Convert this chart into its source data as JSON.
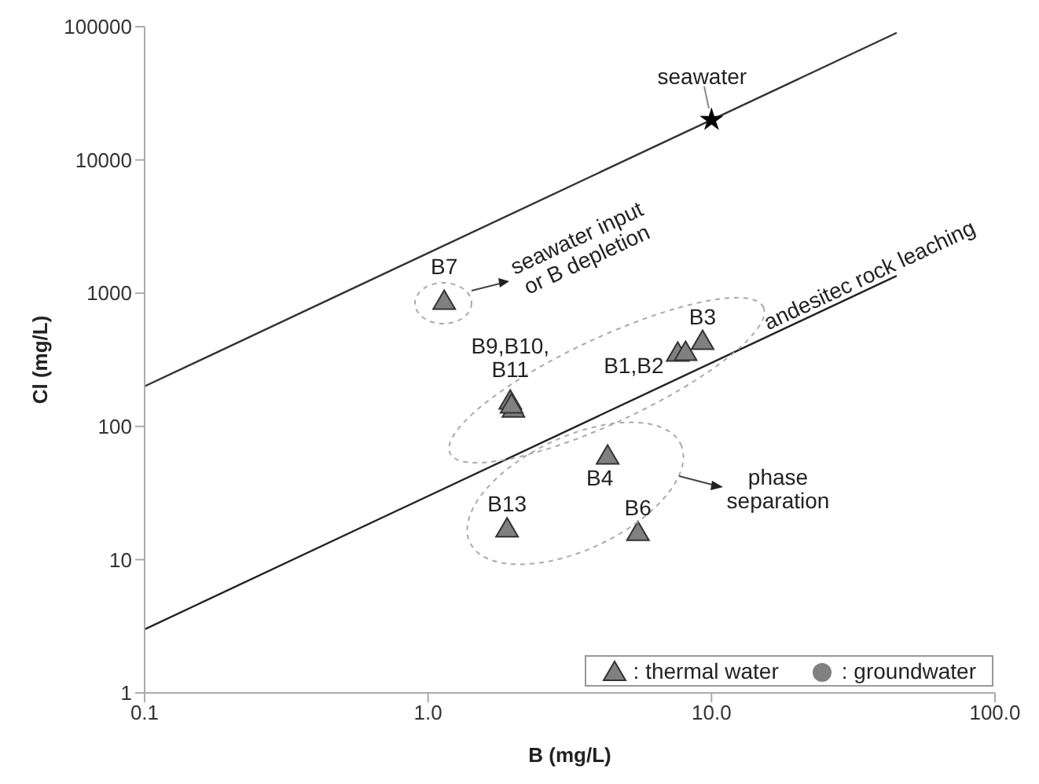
{
  "chart_data": {
    "type": "scatter",
    "xlabel": "B (mg/L)",
    "ylabel": "Cl (mg/L)",
    "log": "xy",
    "grid": false,
    "legend": "bottom right",
    "xlim": [
      0.1,
      100
    ],
    "xticks": [
      {
        "value": 0.1,
        "label": "0.1"
      },
      {
        "value": 1,
        "label": "1.0"
      },
      {
        "value": 10,
        "label": "10.0"
      },
      {
        "value": 100,
        "label": "100.0"
      }
    ],
    "ylim": [
      1,
      100000
    ],
    "yticks": [
      1,
      10,
      100,
      1000,
      10000,
      100000
    ],
    "series": [
      {
        "name": ": thermal water",
        "marker": "triangle",
        "color": "#808080",
        "x": [
          1.14,
          1.95,
          2.0,
          1.97,
          7.6,
          8.1,
          9.3,
          4.3,
          1.9,
          5.5
        ],
        "values": [
          870,
          155,
          135,
          145,
          355,
          360,
          435,
          60,
          17,
          16
        ]
      },
      {
        "name": ": groundwater",
        "marker": "circle",
        "color": "#808080"
      },
      {
        "marker": "star",
        "color": "#000000",
        "x": [
          10
        ],
        "values": [
          20000
        ]
      },
      {
        "type": "line",
        "color": "#333333",
        "line_style": "solid",
        "x": [
          0.1,
          45
        ],
        "values": [
          200,
          90000
        ]
      },
      {
        "type": "line",
        "color": "#222222",
        "line_style": "solid",
        "x": [
          0.1,
          45
        ],
        "values": [
          3,
          1350
        ]
      }
    ],
    "annotations": [
      {
        "text": "seawater",
        "x": 10,
        "y": 20000
      },
      {
        "text": "B7",
        "x": 1.14,
        "y": 870
      },
      {
        "text": "B9,B10,\nB11",
        "x": 1.95,
        "y": 155
      },
      {
        "text": "B1,B2",
        "x": 7.6,
        "y": 355
      },
      {
        "text": "B3",
        "x": 9.3,
        "y": 435
      },
      {
        "text": "B4",
        "x": 4.3,
        "y": 60
      },
      {
        "text": "B13",
        "x": 1.9,
        "y": 17
      },
      {
        "text": "B6",
        "x": 5.5,
        "y": 16
      },
      "seawater input\nor B depletion",
      {
        "text": "andesitec rock leaching",
        "x": 36,
        "y": 1080
      },
      "phase\nseparation"
    ]
  }
}
